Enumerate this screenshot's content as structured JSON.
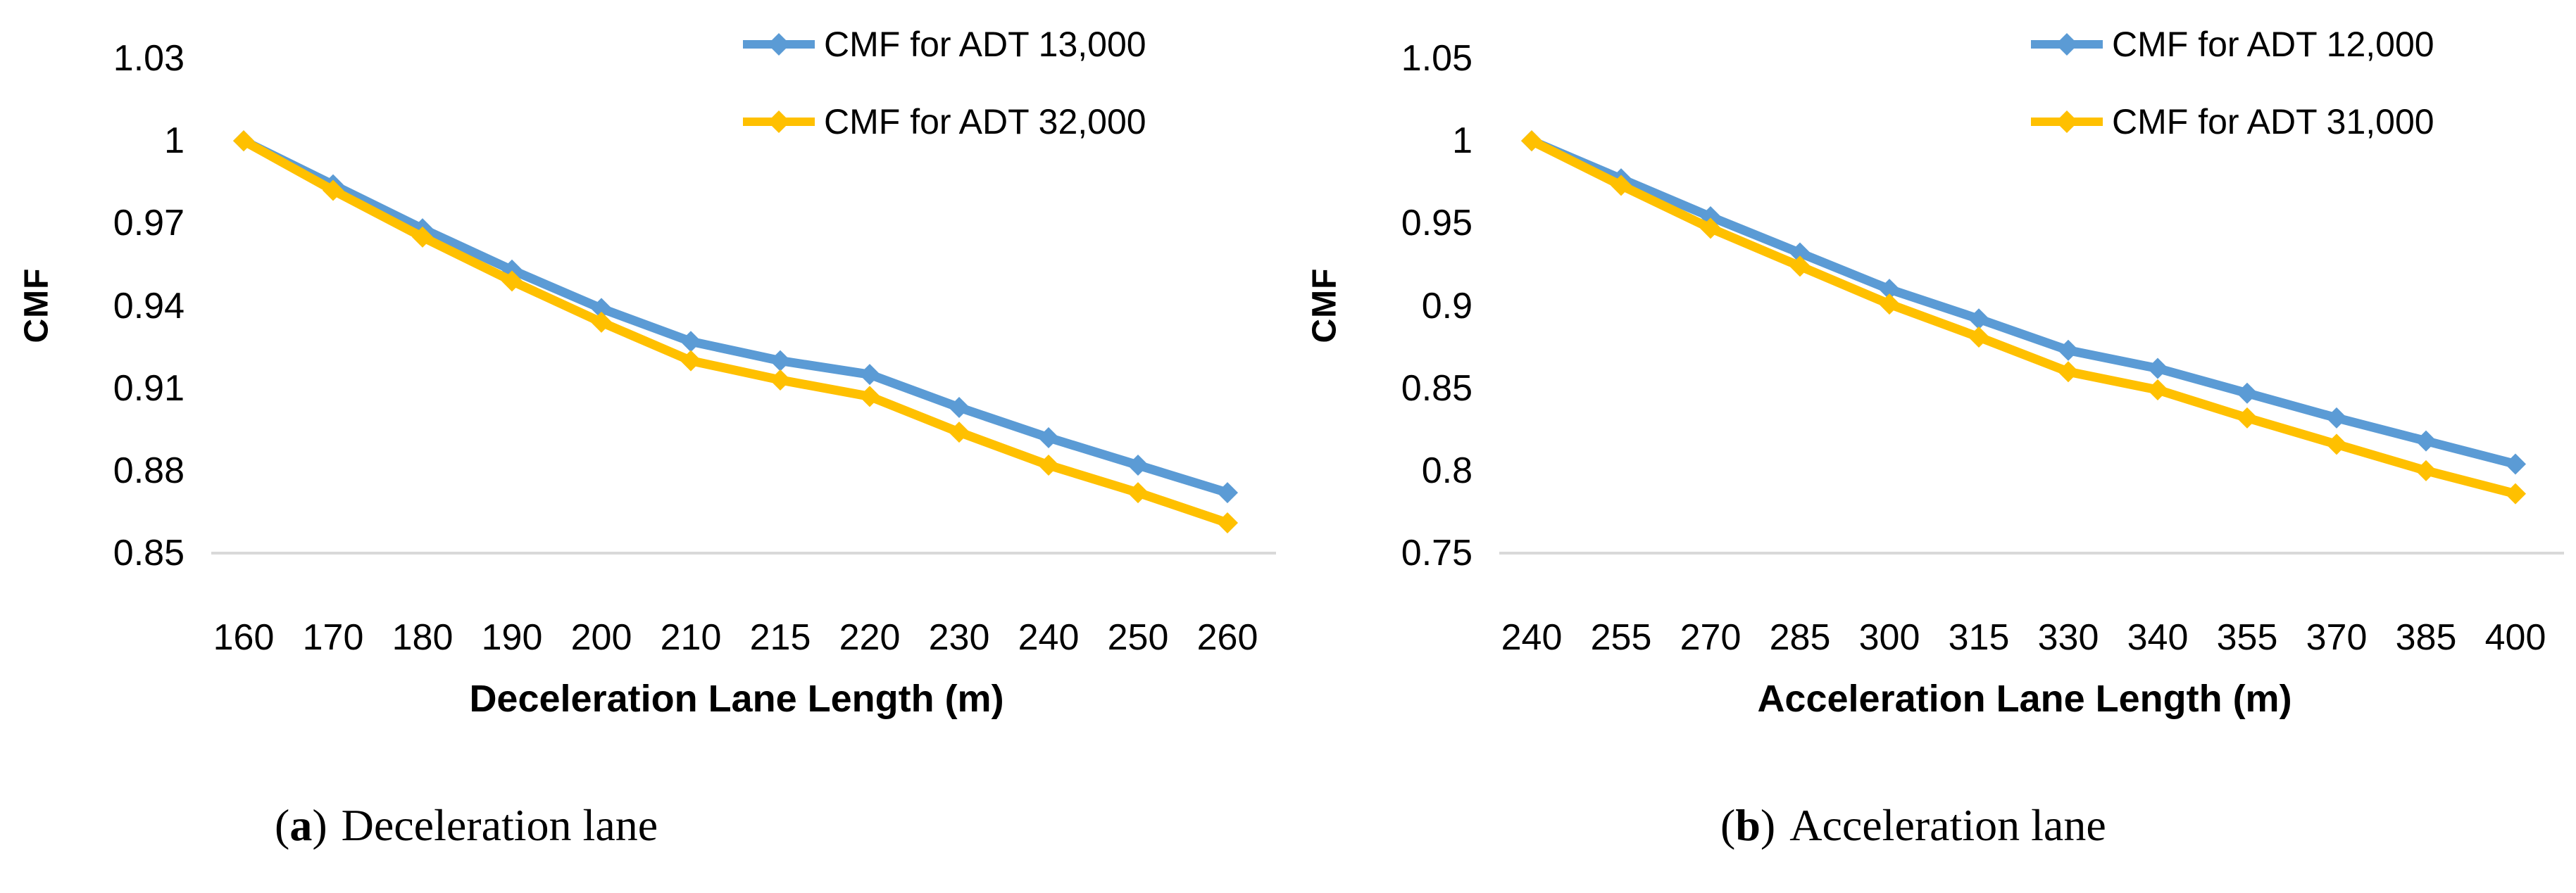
{
  "figure": {
    "background": "#ffffff",
    "captions": [
      {
        "open": "(",
        "marker": "a",
        "close": ")",
        "label": "Deceleration lane"
      },
      {
        "open": "(",
        "marker": "b",
        "close": ")",
        "label": "Acceleration lane"
      }
    ]
  },
  "colors": {
    "series_blue": "#5B9BD5",
    "series_yellow": "#FFC000",
    "axis_line": "#D9D9D9",
    "text": "#000000"
  },
  "chart_data": [
    {
      "type": "line",
      "panel": "a",
      "xlabel": "Deceleration Lane Length (m)",
      "ylabel": "CMF",
      "categories": [
        160,
        170,
        180,
        190,
        200,
        210,
        215,
        220,
        230,
        240,
        250,
        260
      ],
      "y_ticks": [
        "1.03",
        "1",
        "0.97",
        "0.94",
        "0.91",
        "0.88",
        "0.85"
      ],
      "ylim": [
        0.85,
        1.03
      ],
      "grid": false,
      "legend_position": "top-right",
      "marker": "diamond",
      "series": [
        {
          "name": "CMF for ADT 13,000",
          "color": "#5B9BD5",
          "values": [
            1.0,
            0.984,
            0.968,
            0.953,
            0.939,
            0.927,
            0.92,
            0.915,
            0.903,
            0.892,
            0.882,
            0.872
          ]
        },
        {
          "name": "CMF for ADT 32,000",
          "color": "#FFC000",
          "values": [
            1.0,
            0.982,
            0.965,
            0.949,
            0.934,
            0.92,
            0.913,
            0.907,
            0.894,
            0.882,
            0.872,
            0.861
          ]
        }
      ]
    },
    {
      "type": "line",
      "panel": "b",
      "xlabel": "Acceleration Lane Length (m)",
      "ylabel": "CMF",
      "categories": [
        240,
        255,
        270,
        285,
        300,
        315,
        330,
        340,
        355,
        370,
        385,
        400
      ],
      "y_ticks": [
        "1.05",
        "1",
        "0.95",
        "0.9",
        "0.85",
        "0.8",
        "0.75"
      ],
      "ylim": [
        0.75,
        1.05
      ],
      "grid": false,
      "legend_position": "top-right",
      "marker": "diamond",
      "series": [
        {
          "name": "CMF for ADT 12,000",
          "color": "#5B9BD5",
          "values": [
            1.0,
            0.977,
            0.954,
            0.932,
            0.91,
            0.892,
            0.873,
            0.862,
            0.847,
            0.832,
            0.818,
            0.804
          ]
        },
        {
          "name": "CMF for ADT 31,000",
          "color": "#FFC000",
          "values": [
            1.0,
            0.973,
            0.947,
            0.924,
            0.901,
            0.881,
            0.86,
            0.849,
            0.832,
            0.816,
            0.8,
            0.786
          ]
        }
      ]
    }
  ]
}
